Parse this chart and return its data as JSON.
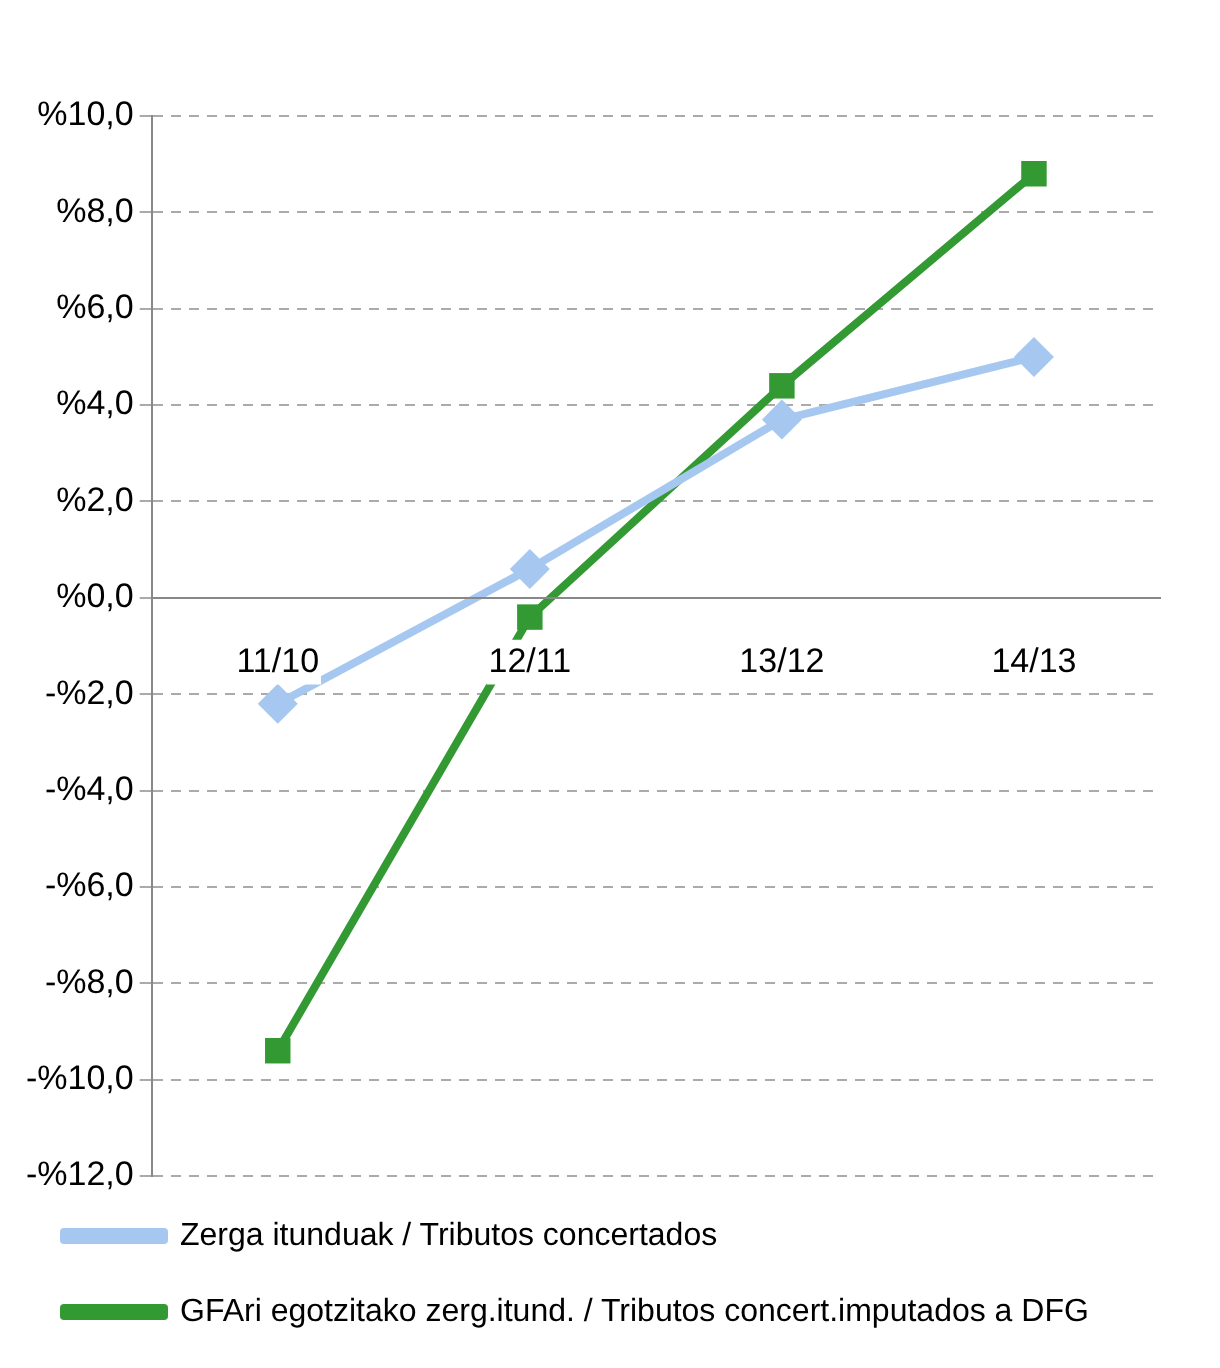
{
  "chart_data": {
    "type": "line",
    "categories": [
      "11/10",
      "12/11",
      "13/12",
      "14/13"
    ],
    "series": [
      {
        "name": "Zerga itunduak / Tributos concertados",
        "color": "#a6c8f0",
        "marker": "diamond",
        "values": [
          -2.2,
          0.6,
          3.7,
          5.0
        ]
      },
      {
        "name": "GFAri egotzitako zerg.itund. / Tributos concert.imputados a DFG",
        "color": "#339933",
        "marker": "square",
        "values": [
          -9.4,
          -0.4,
          4.4,
          8.8
        ]
      }
    ],
    "ylim": [
      -12,
      10
    ],
    "yticks": [
      {
        "value": -12,
        "label": "-%12,0"
      },
      {
        "value": -10,
        "label": "-%10,0"
      },
      {
        "value": -8,
        "label": "-%8,0"
      },
      {
        "value": -6,
        "label": "-%6,0"
      },
      {
        "value": -4,
        "label": "-%4,0"
      },
      {
        "value": -2,
        "label": "-%2,0"
      },
      {
        "value": 0,
        "label": "%0,0"
      },
      {
        "value": 2,
        "label": "%2,0"
      },
      {
        "value": 4,
        "label": "%4,0"
      },
      {
        "value": 6,
        "label": "%6,0"
      },
      {
        "value": 8,
        "label": "%8,0"
      },
      {
        "value": 10,
        "label": "%10,0"
      }
    ],
    "grid": "y",
    "legend": "bottom",
    "line_style": "solid"
  }
}
